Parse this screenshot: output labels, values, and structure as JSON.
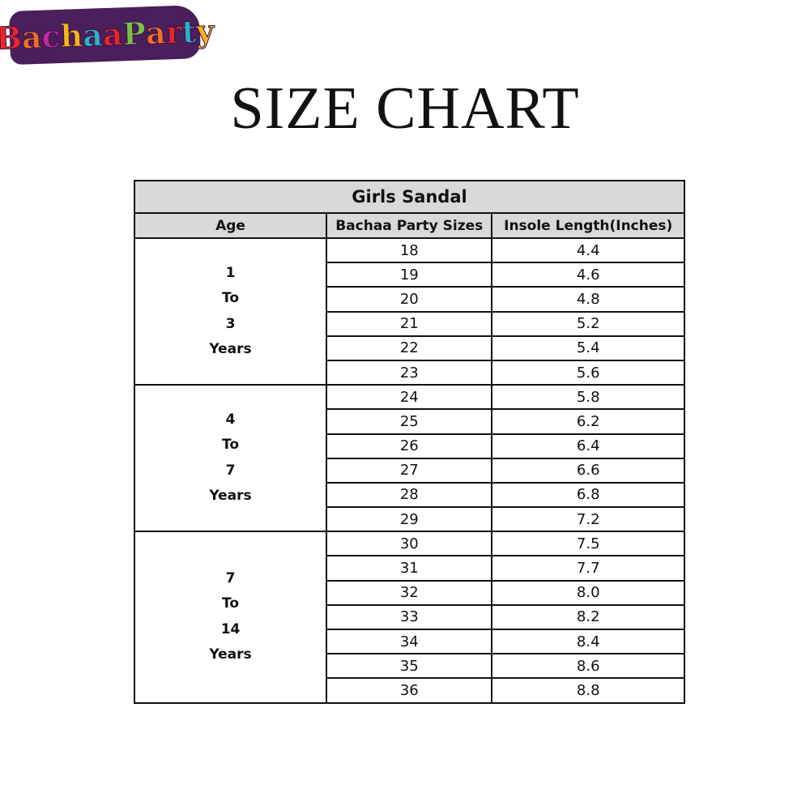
{
  "logo": {
    "text": "BachaaParty",
    "letter_colors": [
      "#e8272a",
      "#f36f21",
      "#c12b9c",
      "#f7b516",
      "#2bb3c8",
      "#e8272a",
      "#7cc242",
      "#f36f21",
      "#e8272a",
      "#2bb3c8",
      "#f7b516"
    ]
  },
  "title": "SIZE CHART",
  "table": {
    "caption": "Girls Sandal",
    "headers": [
      "Age",
      "Bachaa Party Sizes",
      "Insole Length(Inches)"
    ],
    "groups": [
      {
        "age_lines": [
          "1",
          "To",
          "3",
          "Years"
        ],
        "rows": [
          [
            "18",
            "4.4"
          ],
          [
            "19",
            "4.6"
          ],
          [
            "20",
            "4.8"
          ],
          [
            "21",
            "5.2"
          ],
          [
            "22",
            "5.4"
          ],
          [
            "23",
            "5.6"
          ]
        ]
      },
      {
        "age_lines": [
          "4",
          "To",
          "7",
          "Years"
        ],
        "rows": [
          [
            "24",
            "5.8"
          ],
          [
            "25",
            "6.2"
          ],
          [
            "26",
            "6.4"
          ],
          [
            "27",
            "6.6"
          ],
          [
            "28",
            "6.8"
          ],
          [
            "29",
            "7.2"
          ]
        ]
      },
      {
        "age_lines": [
          "7",
          "To",
          "14",
          "Years"
        ],
        "rows": [
          [
            "30",
            "7.5"
          ],
          [
            "31",
            "7.7"
          ],
          [
            "32",
            "8.0"
          ],
          [
            "33",
            "8.2"
          ],
          [
            "34",
            "8.4"
          ],
          [
            "35",
            "8.6"
          ],
          [
            "36",
            "8.8"
          ]
        ]
      }
    ]
  }
}
